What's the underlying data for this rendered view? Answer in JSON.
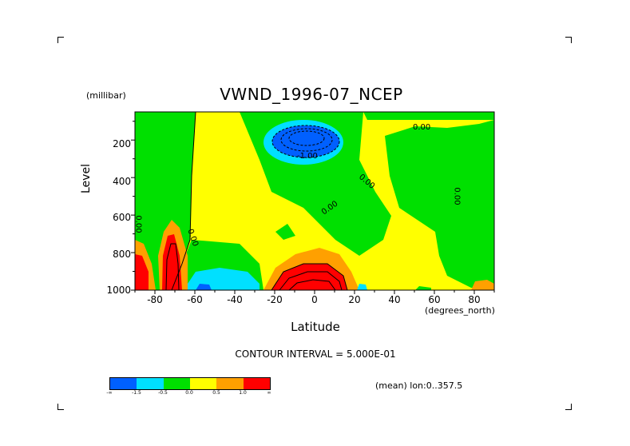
{
  "title": "VWND_1996-07_NCEP",
  "y_unit": "(millibar)",
  "x_unit": "(degrees_north)",
  "contour_interval": "CONTOUR INTERVAL = 5.000E-01",
  "mean_note": "(mean) lon:0..357.5",
  "colorbar": {
    "colors": [
      "#0060ff",
      "#00e0ff",
      "#00e000",
      "#ffff00",
      "#ffa000",
      "#ff0000"
    ],
    "labels": [
      "-∞",
      "-1.5",
      "-0.5",
      "0.0",
      "0.5",
      "1.0",
      "∞"
    ]
  },
  "chart_data": {
    "type": "heatmap",
    "title": "VWND_1996-07_NCEP",
    "xlabel": "Latitude",
    "ylabel": "Level",
    "xlim": [
      -90,
      90
    ],
    "ylim": [
      1000,
      50
    ],
    "x_ticks": [
      "-80",
      "-60",
      "-40",
      "-20",
      "0",
      "20",
      "40",
      "60",
      "80"
    ],
    "y_ticks": [
      "200",
      "400",
      "600",
      "800",
      "1000"
    ],
    "contour_labels": [
      "0.00",
      "0.00",
      "0.00",
      "0.00",
      "0.00",
      "0.00",
      "-1.00"
    ],
    "levels": [
      -1.5,
      -0.5,
      0.0,
      0.5,
      1.0
    ],
    "features": [
      {
        "kind": "min",
        "lat": -5,
        "level": 175,
        "value": -2.5
      },
      {
        "kind": "max",
        "lat": -90,
        "level": 950,
        "value": 1.5
      },
      {
        "kind": "max",
        "lat": -73,
        "level": 900,
        "value": 1.5
      },
      {
        "kind": "max",
        "lat": 0,
        "level": 950,
        "value": 1.5
      },
      {
        "kind": "max",
        "lat": 85,
        "level": 1000,
        "value": 0.5
      },
      {
        "kind": "min",
        "lat": -55,
        "level": 980,
        "value": -1.0
      }
    ]
  }
}
